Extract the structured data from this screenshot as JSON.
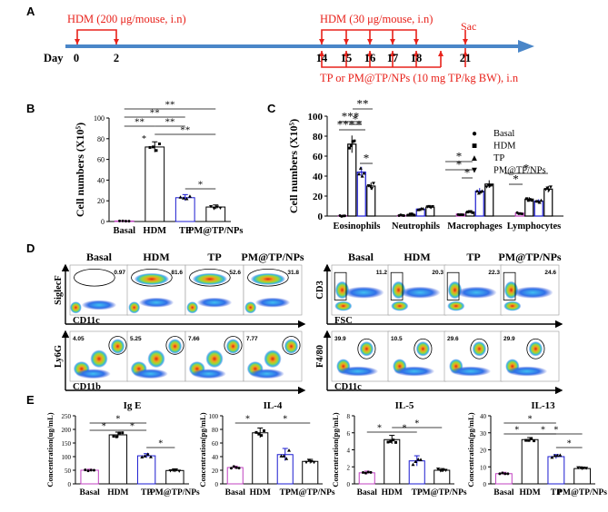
{
  "panel_labels": {
    "a": "A",
    "b": "B",
    "c": "C",
    "d": "D",
    "e": "E"
  },
  "timeline": {
    "day_label": "Day",
    "ticks": [
      "0",
      "2",
      "14",
      "15",
      "16",
      "17",
      "18",
      "21"
    ],
    "hdm_initial": "HDM (200 μg/mouse, i.n)",
    "hdm_challenge": "HDM (30 μg/mouse, i.n)",
    "treatment": "TP or PM@TP/NPs (10 mg TP/kg BW), i.n",
    "sac": "Sac",
    "colors": {
      "arrow": "#4a86c8",
      "marks": "#e8221b",
      "text_red": "#e8221b"
    }
  },
  "chart_data": [
    {
      "id": "B",
      "type": "bar",
      "categories": [
        "Basal",
        "HDM",
        "TP",
        "PM@TP/NPs"
      ],
      "values": [
        0.5,
        72,
        23,
        14
      ],
      "errors": [
        0.3,
        5,
        3,
        2
      ],
      "colors": [
        "#c040c0",
        "#000000",
        "#1a1ad0",
        "#000000"
      ],
      "ylabel": "Cell numbers (X10⁵)",
      "ylim": [
        0,
        100
      ],
      "yticks": [
        0,
        20,
        40,
        60,
        80,
        100
      ],
      "sig": [
        "**",
        "**",
        "**",
        "**",
        "**",
        "*",
        "*"
      ]
    },
    {
      "id": "C",
      "type": "bar",
      "categories": [
        "Eosinophils",
        "Neutrophils",
        "Macrophages",
        "Lymphocytes"
      ],
      "series": [
        {
          "name": "Basal",
          "values": [
            0.4,
            0.5,
            2,
            3
          ],
          "color": "#c040c0"
        },
        {
          "name": "HDM",
          "values": [
            72,
            1.5,
            4,
            17
          ],
          "color": "#000000"
        },
        {
          "name": "TP",
          "values": [
            44,
            7,
            25,
            15
          ],
          "color": "#1a1ad0"
        },
        {
          "name": "PM@TP/NPs",
          "values": [
            30,
            9,
            32,
            27
          ],
          "color": "#000000"
        }
      ],
      "ylabel": "Cell numbers (X10⁵)",
      "ylim": [
        0,
        100
      ],
      "yticks": [
        0,
        20,
        40,
        60,
        80,
        100
      ],
      "legend_markers": [
        "●",
        "■",
        "▲",
        "▼"
      ],
      "sig": [
        "***",
        "***",
        "**",
        "*",
        "*",
        "*",
        "*",
        "*",
        "*",
        "*",
        "*"
      ]
    },
    {
      "id": "E1",
      "type": "bar",
      "title": "Ig E",
      "categories": [
        "Basal",
        "HDM",
        "TP",
        "PM@TP/NPs"
      ],
      "values": [
        50,
        180,
        103,
        49
      ],
      "errors": [
        4,
        10,
        8,
        6
      ],
      "colors": [
        "#c040c0",
        "#000000",
        "#1a1ad0",
        "#000000"
      ],
      "ylabel": "Concentration(ug/mL)",
      "ylim": [
        0,
        250
      ],
      "yticks": [
        0,
        50,
        100,
        150,
        200,
        250
      ],
      "sig": [
        "*",
        "*",
        "*",
        "*"
      ]
    },
    {
      "id": "E2",
      "type": "bar",
      "title": "IL-4",
      "categories": [
        "Basal",
        "HDM",
        "TP",
        "PM@TP/NPs"
      ],
      "values": [
        24,
        75,
        43,
        33
      ],
      "errors": [
        2,
        7,
        9,
        3
      ],
      "colors": [
        "#c040c0",
        "#000000",
        "#1a1ad0",
        "#000000"
      ],
      "ylabel": "Concentration(pg/mL)",
      "ylim": [
        0,
        100
      ],
      "yticks": [
        0,
        20,
        40,
        60,
        80,
        100
      ],
      "sig": [
        "*",
        "*"
      ]
    },
    {
      "id": "E3",
      "type": "bar",
      "title": "IL-5",
      "categories": [
        "Basal",
        "HDM",
        "TP",
        "PM@TP/NPs"
      ],
      "values": [
        1.3,
        5.2,
        2.7,
        1.6
      ],
      "errors": [
        0.2,
        0.5,
        0.6,
        0.2
      ],
      "colors": [
        "#c040c0",
        "#000000",
        "#1a1ad0",
        "#000000"
      ],
      "ylabel": "Concentration(pg/mL)",
      "ylim": [
        0,
        8
      ],
      "yticks": [
        0,
        2,
        4,
        6,
        8
      ],
      "sig": [
        "*",
        "*",
        "*"
      ]
    },
    {
      "id": "E4",
      "type": "bar",
      "title": "IL-13",
      "categories": [
        "Basal",
        "HDM",
        "TP",
        "PM@TP/NPs"
      ],
      "values": [
        6,
        26,
        16,
        9
      ],
      "errors": [
        0.8,
        1.2,
        1.2,
        0.8
      ],
      "colors": [
        "#c040c0",
        "#000000",
        "#1a1ad0",
        "#000000"
      ],
      "ylabel": "Concentration(pg/mL)",
      "ylim": [
        0,
        40
      ],
      "yticks": [
        0,
        10,
        20,
        30,
        40
      ],
      "sig": [
        "*",
        "*",
        "*",
        "*",
        "*"
      ]
    }
  ],
  "flow": {
    "groups": [
      "Basal",
      "HDM",
      "TP",
      "PM@TP/NPs"
    ],
    "left": {
      "row1": {
        "ylabel": "SiglecF",
        "xlabel": "CD11c",
        "values": [
          "0.97",
          "81.6",
          "52.6",
          "31.8"
        ]
      },
      "row2": {
        "ylabel": "Ly6G",
        "xlabel": "CD11b",
        "values": [
          "4.05",
          "5.25",
          "7.66",
          "7.77"
        ]
      }
    },
    "right": {
      "row1": {
        "ylabel": "CD3",
        "xlabel": "FSC",
        "values": [
          "11.2",
          "20.3",
          "22.3",
          "24.6"
        ]
      },
      "row2": {
        "ylabel": "F4/80",
        "xlabel": "CD11c",
        "values": [
          "39.9",
          "10.5",
          "29.6",
          "29.9"
        ]
      }
    }
  }
}
